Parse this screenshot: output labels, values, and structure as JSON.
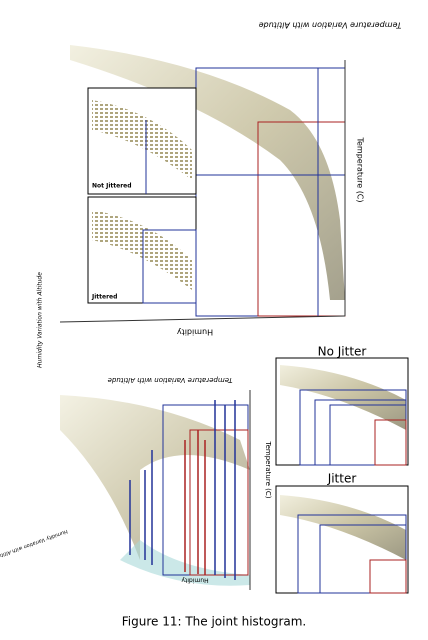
{
  "figure": {
    "top_panel": {
      "title": "Temperature Variation with Altitude",
      "axis_label": "Temperature (C)",
      "x_axis_label": "Humidity",
      "y_axis_label": "Humidity Variation with Altitude",
      "insets": [
        {
          "label": "Not Jittered"
        },
        {
          "label": "Jittered"
        }
      ]
    },
    "bottom_panel": {
      "title": "Temperature Variation with Altitude",
      "axis_label": "Temperature (C)",
      "x_axis_label": "Humidity",
      "y_axis_label": "Humidity Variation with Altitude",
      "insets": [
        {
          "label": "No Jitter"
        },
        {
          "label": "Jitter"
        }
      ]
    },
    "caption": "Figure 11:  The joint histogram."
  }
}
